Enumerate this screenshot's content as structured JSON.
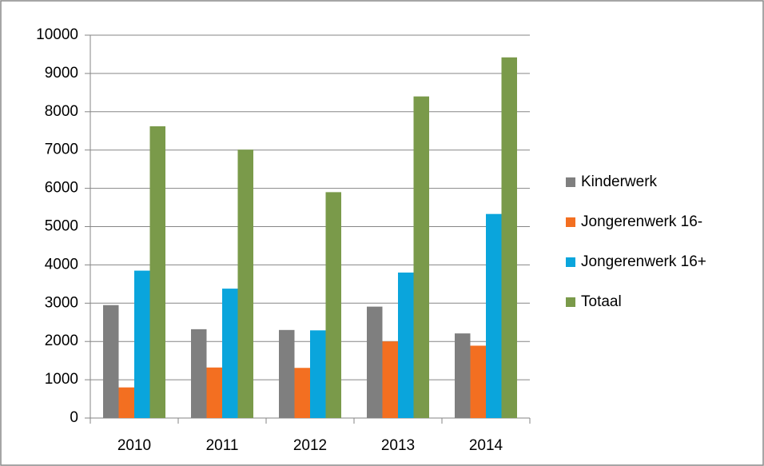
{
  "chart_data": {
    "type": "bar",
    "categories": [
      "2010",
      "2011",
      "2012",
      "2013",
      "2014"
    ],
    "series": [
      {
        "name": "Kinderwerk",
        "color": "#7f7f7f",
        "values": [
          2950,
          2320,
          2300,
          2910,
          2210
        ]
      },
      {
        "name": "Jongerenwerk 16-",
        "color": "#f36f21",
        "values": [
          800,
          1320,
          1310,
          2000,
          1890
        ]
      },
      {
        "name": "Jongerenwerk 16+",
        "color": "#0aa5dc",
        "values": [
          3850,
          3380,
          2290,
          3800,
          5330
        ]
      },
      {
        "name": "Totaal",
        "color": "#7a9a4a",
        "values": [
          7620,
          7010,
          5900,
          8400,
          9420
        ]
      }
    ],
    "ylim": [
      0,
      10000
    ],
    "yticks": [
      0,
      1000,
      2000,
      3000,
      4000,
      5000,
      6000,
      7000,
      8000,
      9000,
      10000
    ],
    "grid": true,
    "legend": "right"
  }
}
